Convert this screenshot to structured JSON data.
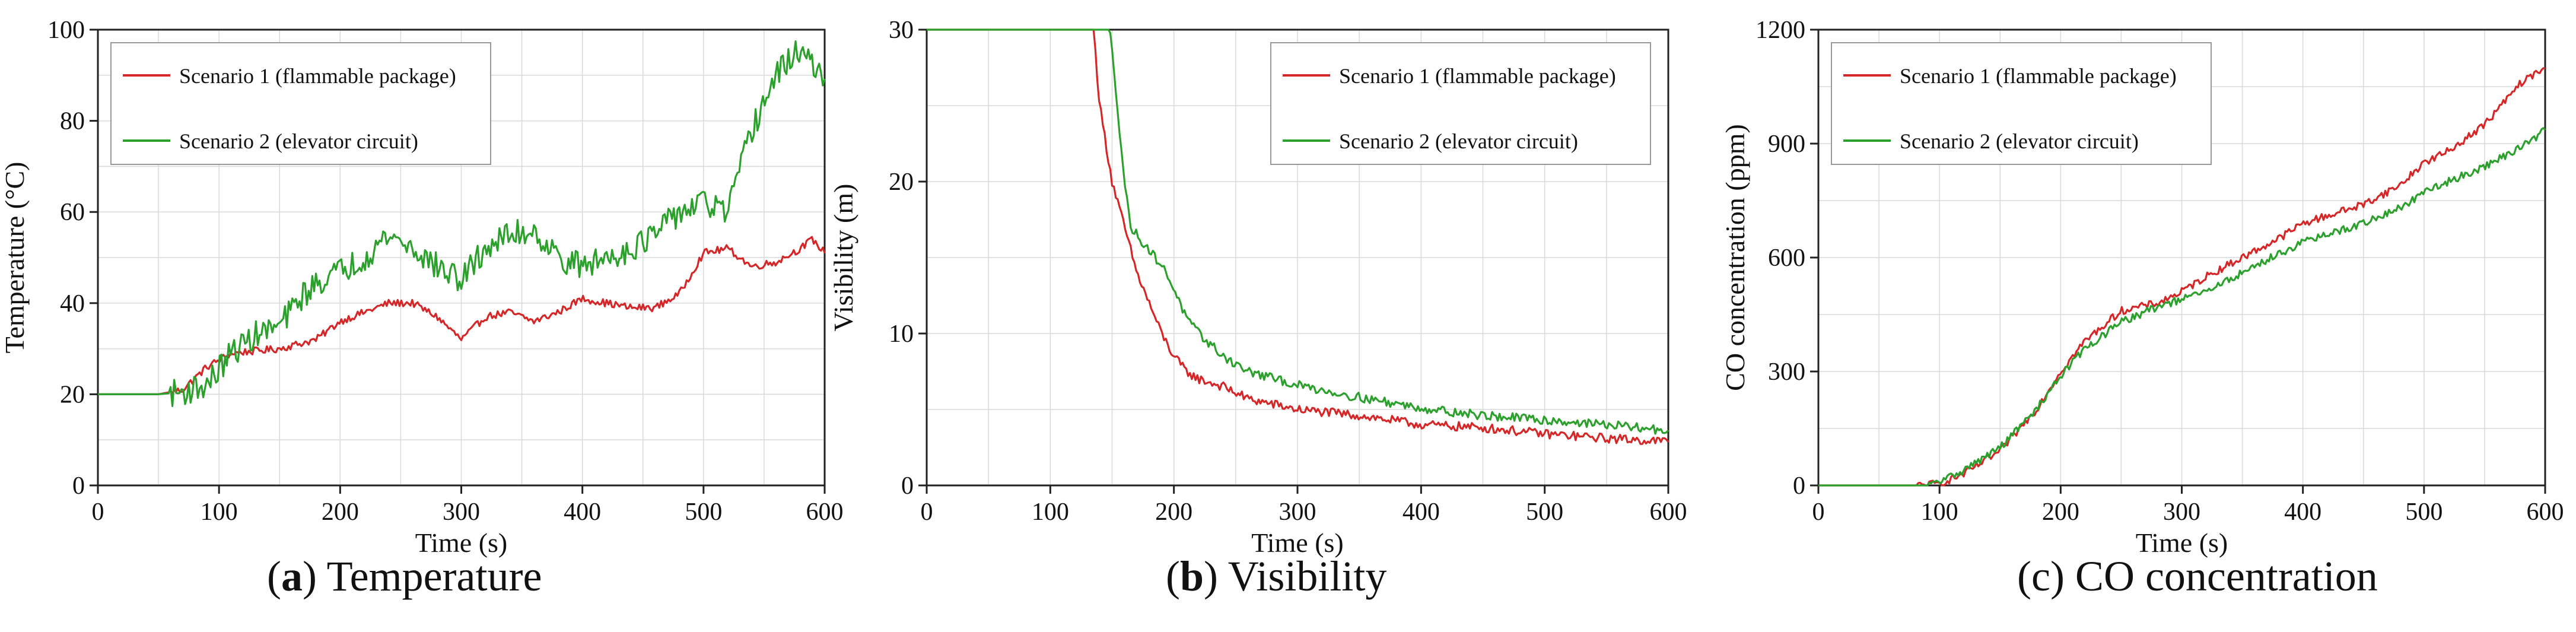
{
  "colors": {
    "series1": "#d62728",
    "series2": "#2ca02c",
    "grid": "#d9d9d9",
    "axis": "#222222"
  },
  "captions": [
    {
      "letter": "a",
      "paren_open": "(",
      "paren_close": ")",
      "text": "Temperature"
    },
    {
      "letter": "b",
      "paren_open": "(",
      "paren_close": ")",
      "text": "Visibility"
    },
    {
      "letter": "",
      "paren_open": "(",
      "paren_close": "",
      "text": "c) CO concentration"
    }
  ],
  "chart_data": [
    {
      "type": "line",
      "title": "",
      "xlabel": "Time (s)",
      "ylabel": "Temperature (°C)",
      "xlim": [
        0,
        600
      ],
      "ylim": [
        20,
        100
      ],
      "ylim_axis": [
        0,
        100
      ],
      "xticks": [
        0,
        100,
        200,
        300,
        400,
        500,
        600
      ],
      "yticks": [
        0,
        20,
        40,
        60,
        80,
        100
      ],
      "grid": true,
      "legend_position": "top-left",
      "series": [
        {
          "name": "Scenario 1 (flammable package)",
          "color": "#d62728",
          "noise": 0.8,
          "x": [
            0,
            50,
            70,
            90,
            110,
            130,
            150,
            180,
            200,
            220,
            240,
            260,
            280,
            300,
            320,
            340,
            360,
            380,
            400,
            420,
            440,
            460,
            480,
            500,
            520,
            540,
            560,
            580,
            590,
            600
          ],
          "y": [
            20,
            20,
            21,
            26,
            29,
            29.5,
            30,
            32,
            36,
            38,
            40,
            40,
            37,
            32,
            37,
            38,
            36,
            38,
            41,
            40,
            39,
            39,
            42,
            51,
            52,
            48,
            49,
            52,
            54,
            51
          ]
        },
        {
          "name": "Scenario 2 (elevator circuit)",
          "color": "#2ca02c",
          "noise": 3.0,
          "x": [
            0,
            50,
            70,
            90,
            110,
            130,
            150,
            170,
            190,
            200,
            220,
            240,
            260,
            280,
            300,
            320,
            340,
            360,
            380,
            400,
            420,
            440,
            460,
            480,
            500,
            520,
            540,
            560,
            580,
            600
          ],
          "y": [
            20,
            20,
            20.5,
            22,
            29,
            33,
            35,
            42,
            46,
            47,
            50,
            55,
            52,
            48,
            45,
            52,
            55,
            56,
            50,
            48,
            50,
            52,
            55,
            60,
            62,
            60,
            78,
            90,
            96,
            88
          ]
        }
      ]
    },
    {
      "type": "line",
      "title": "",
      "xlabel": "Time (s)",
      "ylabel": "Visibility (m)",
      "xlim": [
        0,
        600
      ],
      "ylim": [
        0,
        30
      ],
      "yticks": [
        0,
        10,
        20,
        30
      ],
      "xticks": [
        0,
        100,
        200,
        300,
        400,
        500,
        600
      ],
      "grid": true,
      "legend_position": "top-right",
      "series": [
        {
          "name": "Scenario 1 (flammable package)",
          "color": "#d62728",
          "noise": 0.3,
          "x": [
            0,
            135,
            140,
            150,
            160,
            170,
            180,
            190,
            200,
            210,
            220,
            240,
            260,
            300,
            350,
            400,
            450,
            500,
            550,
            600
          ],
          "y": [
            30,
            30,
            25,
            20,
            17,
            14,
            12,
            10,
            8.5,
            7.5,
            7,
            6.5,
            5.7,
            5,
            4.6,
            4,
            3.8,
            3.4,
            3.1,
            2.9
          ]
        },
        {
          "name": "Scenario 2 (elevator circuit)",
          "color": "#2ca02c",
          "noise": 0.3,
          "x": [
            0,
            148,
            152,
            160,
            165,
            170,
            180,
            190,
            200,
            210,
            220,
            240,
            260,
            300,
            350,
            400,
            450,
            500,
            550,
            600
          ],
          "y": [
            30,
            30,
            27,
            20,
            17,
            16.5,
            15.5,
            14.5,
            13,
            11,
            10,
            8.5,
            7.5,
            6.6,
            5.8,
            5.1,
            4.6,
            4.3,
            4,
            3.6
          ]
        }
      ]
    },
    {
      "type": "line",
      "title": "",
      "xlabel": "Time (s)",
      "ylabel": "CO concentration (ppm)",
      "xlim": [
        0,
        600
      ],
      "ylim": [
        0,
        1200
      ],
      "yticks": [
        0,
        300,
        600,
        900,
        1200
      ],
      "xticks": [
        0,
        100,
        200,
        300,
        400,
        500,
        600
      ],
      "grid": true,
      "legend_position": "top-left",
      "series": [
        {
          "name": "Scenario 1 (flammable package)",
          "color": "#d62728",
          "noise": 10,
          "x": [
            0,
            80,
            100,
            120,
            150,
            180,
            200,
            220,
            250,
            280,
            300,
            320,
            350,
            380,
            400,
            420,
            450,
            480,
            500,
            520,
            550,
            580,
            600
          ],
          "y": [
            0,
            0,
            5,
            30,
            90,
            200,
            300,
            380,
            460,
            480,
            510,
            550,
            600,
            650,
            690,
            710,
            740,
            790,
            850,
            880,
            950,
            1060,
            1100
          ]
        },
        {
          "name": "Scenario 2 (elevator circuit)",
          "color": "#2ca02c",
          "noise": 10,
          "x": [
            0,
            90,
            100,
            120,
            150,
            180,
            200,
            220,
            250,
            280,
            300,
            320,
            350,
            380,
            400,
            420,
            450,
            480,
            500,
            520,
            550,
            580,
            600
          ],
          "y": [
            0,
            0,
            10,
            40,
            100,
            200,
            290,
            360,
            430,
            470,
            490,
            510,
            560,
            610,
            640,
            660,
            690,
            730,
            770,
            800,
            840,
            890,
            935
          ]
        }
      ]
    }
  ]
}
